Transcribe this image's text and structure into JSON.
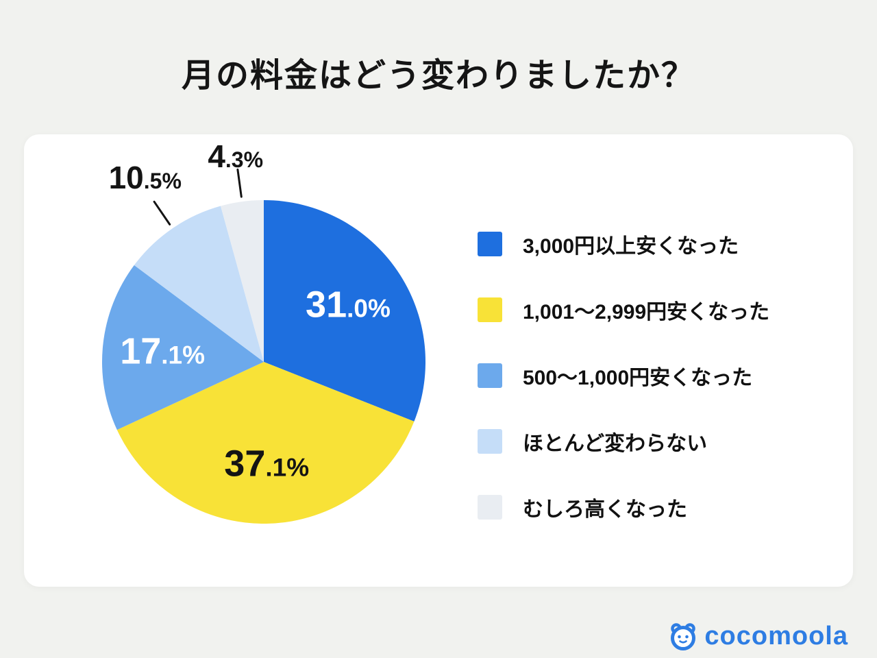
{
  "title": "月の料金はどう変わりましたか？",
  "brand": {
    "name": "cocomoola",
    "color": "#2e7de3"
  },
  "chart_data": {
    "type": "pie",
    "title": "月の料金はどう変わりましたか？",
    "legend_position": "right",
    "direction": "clockwise",
    "start_angle_deg": 0,
    "slices": [
      {
        "label": "3,000円以上安くなった",
        "value": 31.0,
        "color": "#1e6fdf",
        "text_color": "#ffffff"
      },
      {
        "label": "1,001〜2,999円安くなった",
        "value": 37.1,
        "color": "#f8e237",
        "text_color": "#141414"
      },
      {
        "label": "500〜1,000円安くなった",
        "value": 17.1,
        "color": "#6ca9ec",
        "text_color": "#ffffff"
      },
      {
        "label": "ほとんど変わらない",
        "value": 10.5,
        "color": "#c5ddf8",
        "text_color": "#141414"
      },
      {
        "label": "むしろ高くなった",
        "value": 4.3,
        "color": "#e9edf2",
        "text_color": "#141414"
      }
    ]
  }
}
